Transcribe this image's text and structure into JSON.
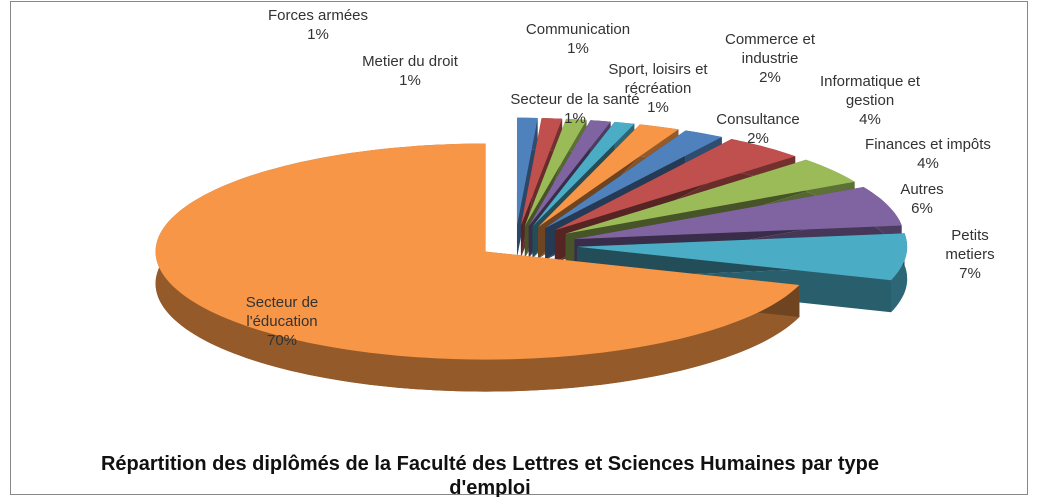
{
  "chart_data": {
    "type": "pie",
    "title": "Répartition des diplômés de la Faculté des Lettres et Sciences Humaines  par type d'emploi",
    "categories": [
      "Forces armées",
      "Metier du droit",
      "Secteur de la santé",
      "Communication",
      "Sport, loisirs et récréation",
      "Commerce et industrie",
      "Consultance",
      "Informatique et gestion",
      "Finances et impôts",
      "Autres",
      "Petits metiers",
      "Secteur de l'éducation"
    ],
    "values": [
      1,
      1,
      1,
      1,
      1,
      2,
      2,
      4,
      4,
      6,
      7,
      70
    ],
    "value_labels": [
      "1%",
      "1%",
      "1%",
      "1%",
      "1%",
      "2%",
      "2%",
      "4%",
      "4%",
      "6%",
      "7%",
      "70%"
    ],
    "colors": [
      "#4f81bd",
      "#c0504d",
      "#9bbb59",
      "#8064a2",
      "#4bacc6",
      "#f79646",
      "#4f81bd",
      "#c0504d",
      "#9bbb59",
      "#8064a2",
      "#4bacc6",
      "#f79646"
    ]
  }
}
